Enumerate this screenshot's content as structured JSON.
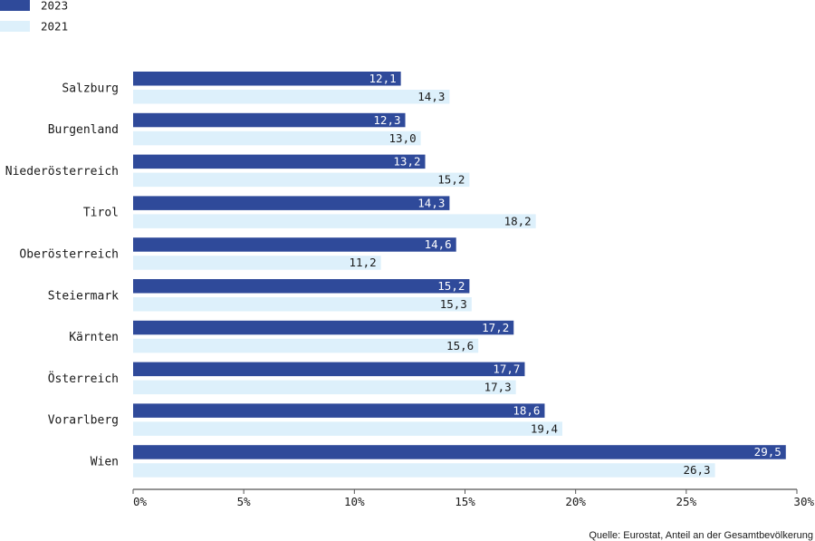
{
  "chart_data": {
    "type": "bar",
    "orientation": "horizontal",
    "categories": [
      "Salzburg",
      "Burgenland",
      "Niederösterreich",
      "Tirol",
      "Oberösterreich",
      "Steiermark",
      "Kärnten",
      "Österreich",
      "Vorarlberg",
      "Wien"
    ],
    "category_colors": [
      "#1a1a1a",
      "#1a1a1a",
      "#1a1a1a",
      "#1a1a1a",
      "#1a1a1a",
      "#1a1a1a",
      "#1a1a1a",
      "#2f4a9a",
      "#e03a3e",
      "#1a1a1a"
    ],
    "series": [
      {
        "name": "2023",
        "color": "#2f4a9a",
        "label_color": "#ffffff",
        "values": [
          12.1,
          12.3,
          13.2,
          14.3,
          14.6,
          15.2,
          17.2,
          17.7,
          18.6,
          29.5
        ],
        "labels": [
          "12,1",
          "12,3",
          "13,2",
          "14,3",
          "14,6",
          "15,2",
          "17,2",
          "17,7",
          "18,6",
          "29,5"
        ]
      },
      {
        "name": "2021",
        "color": "#ddf0fb",
        "label_color": "#1a1a1a",
        "values": [
          14.3,
          13.0,
          15.2,
          18.2,
          11.2,
          15.3,
          15.6,
          17.3,
          19.4,
          26.3
        ],
        "labels": [
          "14,3",
          "13,0",
          "15,2",
          "18,2",
          "11,2",
          "15,3",
          "15,6",
          "17,3",
          "19,4",
          "26,3"
        ]
      }
    ],
    "xlim": [
      0,
      30
    ],
    "xticks": [
      0,
      5,
      10,
      15,
      20,
      25,
      30
    ],
    "xtick_labels": [
      "0%",
      "5%",
      "10%",
      "15%",
      "20%",
      "25%",
      "30%"
    ],
    "grid": false,
    "legend_position": "top-left",
    "axis_color": "#555555"
  },
  "source_text": "Quelle: Eurostat, Anteil an der Gesamtbevölkerung"
}
